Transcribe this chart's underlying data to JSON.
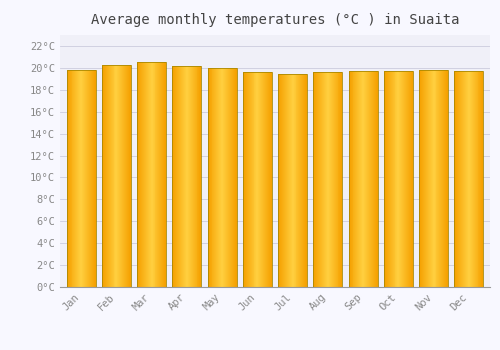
{
  "title": "Average monthly temperatures (°C ) in Suaita",
  "months": [
    "Jan",
    "Feb",
    "Mar",
    "Apr",
    "May",
    "Jun",
    "Jul",
    "Aug",
    "Sep",
    "Oct",
    "Nov",
    "Dec"
  ],
  "values": [
    19.8,
    20.3,
    20.5,
    20.2,
    20.0,
    19.6,
    19.4,
    19.6,
    19.7,
    19.7,
    19.8,
    19.7
  ],
  "bar_color_left": "#FFA500",
  "bar_color_center": "#FFD040",
  "bar_color_right": "#FFA500",
  "bar_edge_color": "#B8860B",
  "background_color": "#F8F8FF",
  "plot_bg_color": "#F0F0F8",
  "grid_color": "#CCCCDD",
  "ylim": [
    0,
    23
  ],
  "ytick_step": 2,
  "title_fontsize": 10,
  "tick_fontsize": 7.5,
  "title_color": "#444444",
  "tick_color": "#888888",
  "font_family": "monospace"
}
